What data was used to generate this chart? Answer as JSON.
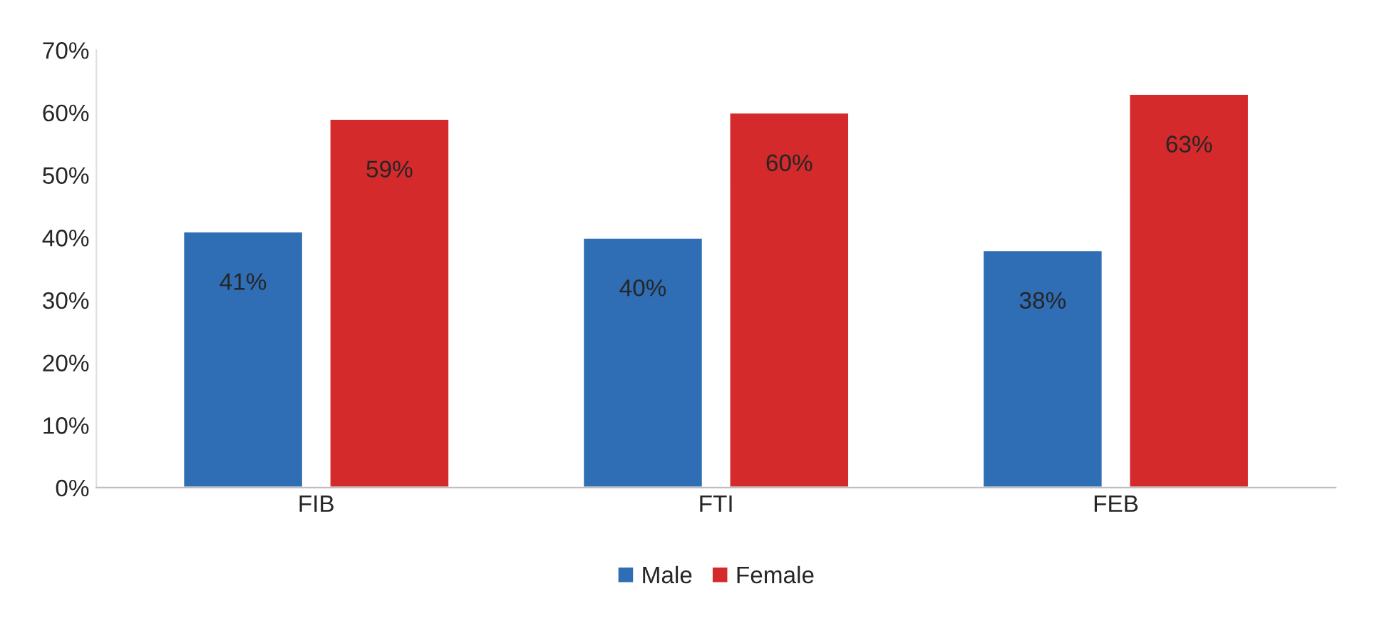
{
  "chart_data": {
    "type": "bar",
    "categories": [
      "FIB",
      "FTI",
      "FEB"
    ],
    "series": [
      {
        "name": "Male",
        "color": "#2f6db5",
        "values": [
          41,
          40,
          38
        ],
        "value_labels": [
          "41%",
          "40%",
          "38%"
        ]
      },
      {
        "name": "Female",
        "color": "#d42a2c",
        "values": [
          59,
          60,
          63
        ],
        "value_labels": [
          "59%",
          "60%",
          "63%"
        ]
      }
    ],
    "ylim": [
      0,
      70
    ],
    "yticks": [
      {
        "value": 0,
        "label": "0%"
      },
      {
        "value": 10,
        "label": "10%"
      },
      {
        "value": 20,
        "label": "20%"
      },
      {
        "value": 30,
        "label": "30%"
      },
      {
        "value": 40,
        "label": "40%"
      },
      {
        "value": 50,
        "label": "50%"
      },
      {
        "value": 60,
        "label": "60%"
      },
      {
        "value": 70,
        "label": "70%"
      }
    ],
    "grid": false,
    "legend": "bottom"
  }
}
